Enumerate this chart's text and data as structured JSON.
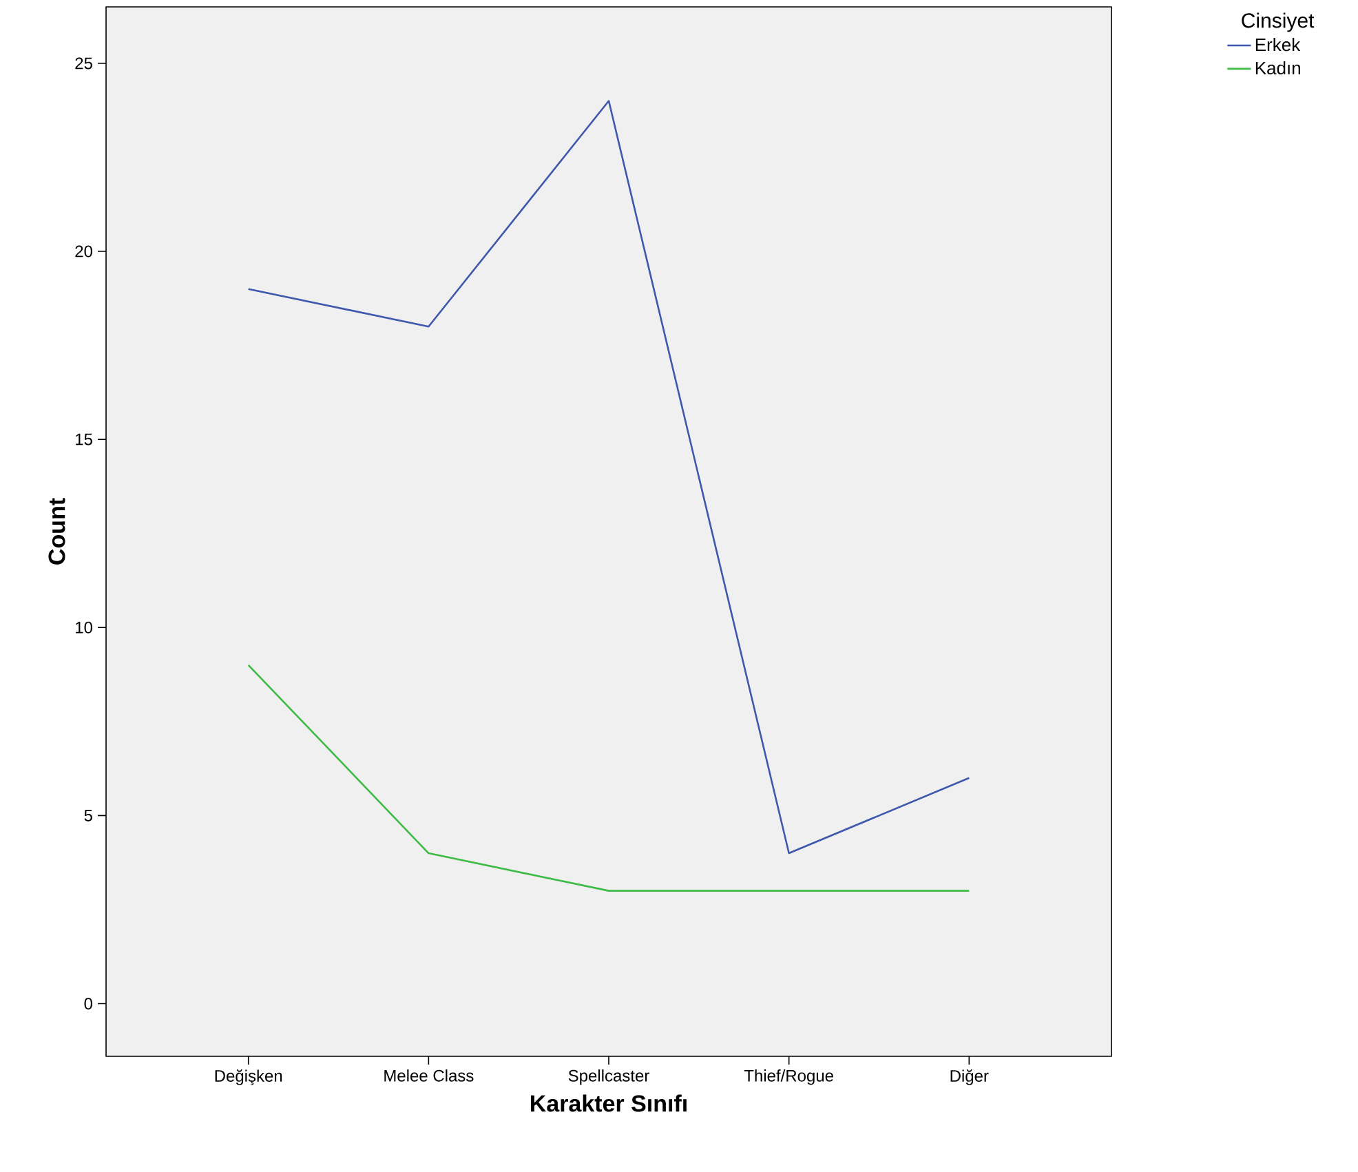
{
  "chart_data": {
    "type": "line",
    "xlabel": "Karakter Sınıfı",
    "ylabel": "Count",
    "legend_title": "Cinsiyet",
    "legend": "top right",
    "categories": [
      "Değişken",
      "Melee Class",
      "Spellcaster",
      "Thief/Rogue",
      "Diğer"
    ],
    "ylim": [
      -1.4,
      26.5
    ],
    "yticks": [
      0,
      5,
      10,
      15,
      20,
      25
    ],
    "series": [
      {
        "name": "Erkek",
        "color": "#3e58ac",
        "values": [
          19,
          18,
          24,
          4,
          6
        ]
      },
      {
        "name": "Kadın",
        "color": "#3dbb45",
        "values": [
          9,
          4,
          3,
          3,
          3
        ]
      }
    ]
  }
}
